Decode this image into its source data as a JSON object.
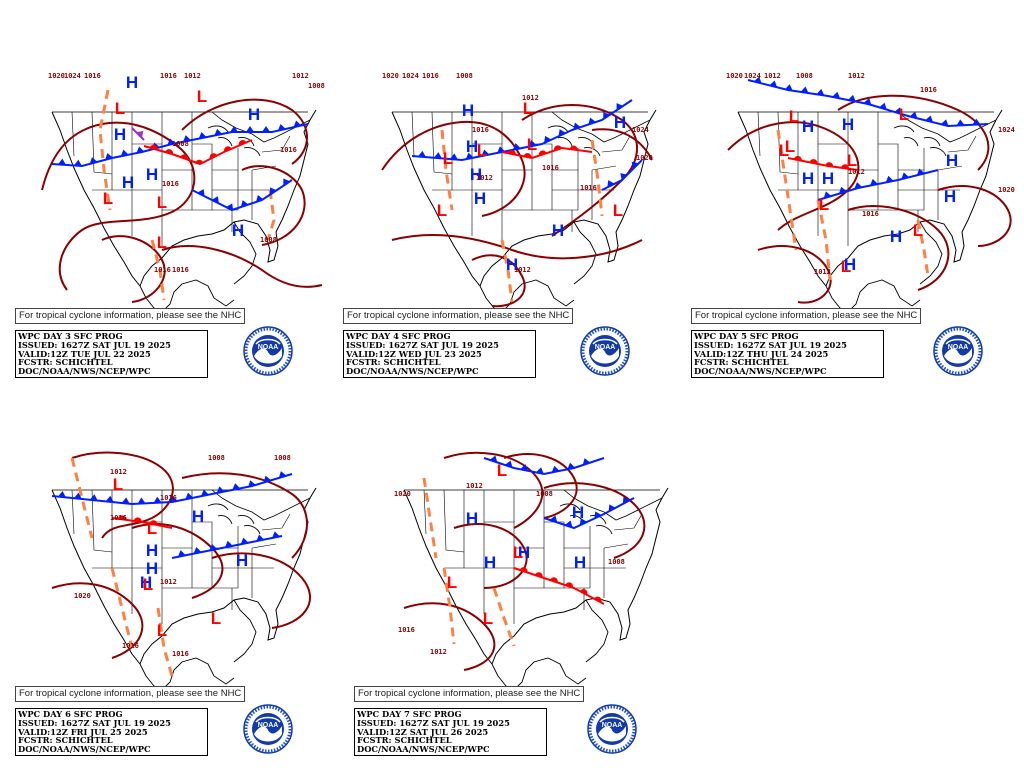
{
  "colors": {
    "isobar": "#8b0000",
    "high": "#0020ff",
    "low": "#ff0000",
    "trough": "#ff8040",
    "cold_front": "#0020ff",
    "warm_front": "#ff0000",
    "occluded": "#9933cc",
    "coast": "#000000",
    "noaa_blue": "#1a4fd8",
    "noaa_dark": "#123aa8"
  },
  "icons": {
    "high_pressure": "H",
    "low_pressure": "L",
    "logo": "noaa-logo-icon"
  },
  "noaa_label": "NOAA",
  "panels": [
    {
      "id": "day3",
      "note": "For tropical cyclone information, please see the NHC",
      "title": "WPC DAY 3 SFC PROG",
      "issued": "ISSUED: 1627Z SAT JUL 19 2025",
      "valid": "VALID:12Z TUE JUL 22 2025",
      "fcstr": "FCSTR: SCHICHTEL",
      "org": "DOC/NOAA/NWS/NCEP/WPC",
      "isobar_labels": [
        "1020",
        "1024",
        "1016",
        "1016",
        "1012",
        "1012",
        "1008",
        "1008",
        "1016",
        "1016",
        "1008",
        "1016",
        "1016"
      ]
    },
    {
      "id": "day4",
      "note": "For tropical cyclone information, please see the NHC",
      "title": "WPC DAY 4 SFC PROG",
      "issued": "ISSUED: 1627Z SAT JUL 19 2025",
      "valid": "VALID:12Z WED JUL 23 2025",
      "fcstr": "FCSTR: SCHICHTEL",
      "org": "DOC/NOAA/NWS/NCEP/WPC",
      "isobar_labels": [
        "1020",
        "1024",
        "1016",
        "1008",
        "1012",
        "1016",
        "1012",
        "1024",
        "1020",
        "1016",
        "1012",
        "1016"
      ]
    },
    {
      "id": "day5",
      "note": "For tropical cyclone information, please see the NHC",
      "title": "WPC DAY 5 SFC PROG",
      "issued": "ISSUED: 1627Z SAT JUL 19 2025",
      "valid": "VALID:12Z THU JUL 24 2025",
      "fcstr": "FCSTR: SCHICHTEL",
      "org": "DOC/NOAA/NWS/NCEP/WPC",
      "isobar_labels": [
        "1020",
        "1024",
        "1012",
        "1008",
        "1012",
        "1016",
        "1024",
        "1012",
        "1016",
        "1020",
        "1012"
      ]
    },
    {
      "id": "day6",
      "note": "For tropical cyclone information, please see the NHC",
      "title": "WPC DAY 6 SFC PROG",
      "issued": "ISSUED: 1627Z SAT JUL 19 2025",
      "valid": "VALID:12Z FRI JUL 25 2025",
      "fcstr": "FCSTR: SCHICHTEL",
      "org": "DOC/NOAA/NWS/NCEP/WPC",
      "isobar_labels": [
        "1012",
        "1008",
        "1008",
        "1016",
        "1016",
        "1020",
        "1012",
        "1016",
        "1016"
      ]
    },
    {
      "id": "day7",
      "note": "For tropical cyclone information, please see the NHC",
      "title": "WPC DAY 7 SFC PROG",
      "issued": "ISSUED: 1627Z SAT JUL 19 2025",
      "valid": "VALID:12Z SAT JUL 26 2025",
      "fcstr": "FCSTR: SCHICHTEL",
      "org": "DOC/NOAA/NWS/NCEP/WPC",
      "isobar_labels": [
        "1020",
        "1012",
        "1008",
        "1008",
        "1016",
        "1012"
      ]
    }
  ]
}
